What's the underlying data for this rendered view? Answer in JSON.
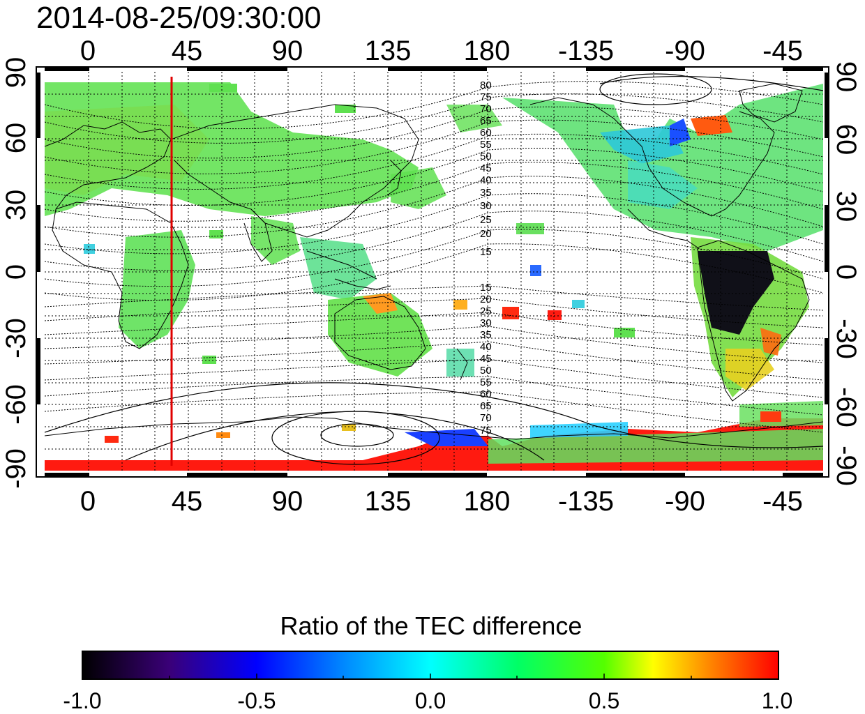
{
  "title": "2014-08-25/09:30:00",
  "axes": {
    "top_ticks": [
      "0",
      "45",
      "90",
      "135",
      "180",
      "-135",
      "-90",
      "-45"
    ],
    "bottom_ticks": [
      "0",
      "45",
      "90",
      "135",
      "180",
      "-135",
      "-90",
      "-45"
    ],
    "left_ticks": [
      "90",
      "60",
      "30",
      "0",
      "-30",
      "-60",
      "-90"
    ],
    "right_ticks": [
      "90",
      "60",
      "30",
      "0",
      "-30",
      "-60",
      "-90"
    ]
  },
  "contour_labels_north": [
    "80",
    "75",
    "70",
    "65",
    "60",
    "55",
    "50",
    "45",
    "40",
    "35",
    "30",
    "25",
    "20",
    "15"
  ],
  "contour_labels_south": [
    "15",
    "20",
    "25",
    "30",
    "35",
    "40",
    "45",
    "50",
    "55",
    "60",
    "65",
    "70",
    "75"
  ],
  "colorbar": {
    "title": "Ratio of the TEC difference",
    "ticks": [
      "-1.0",
      "-0.5",
      "0.0",
      "0.5",
      "1.0"
    ],
    "range": [
      -1.0,
      1.0
    ]
  },
  "colors": {
    "dominant_map": "#44e044",
    "marker_line": "#e00000"
  }
}
